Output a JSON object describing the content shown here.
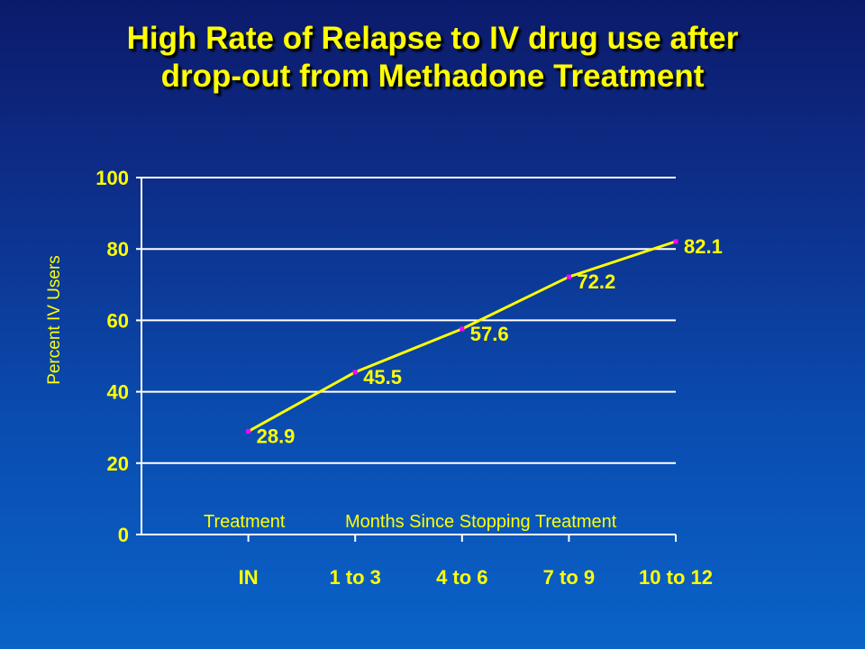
{
  "title": {
    "line1": "High Rate of Relapse to IV drug use after",
    "line2": "drop-out from Methadone Treatment"
  },
  "annotations": {
    "treatment": "Treatment",
    "months": "Months Since Stopping Treatment"
  },
  "colors": {
    "text": "#ffff00",
    "line": "#ffff00",
    "marker": "#ff00ff",
    "grid": "#ffffff",
    "background_top": "#0c1a6b",
    "background_bottom": "#0a63c8"
  },
  "chart_data": {
    "type": "line",
    "categories": [
      "IN",
      "1 to 3",
      "4 to 6",
      "7 to 9",
      "10 to 12"
    ],
    "series": [
      {
        "values": [
          28.9,
          45.5,
          57.6,
          72.2,
          82.1
        ]
      }
    ],
    "data_labels": [
      "28.9",
      "45.5",
      "57.6",
      "72.2",
      "82.1"
    ],
    "ylabel": "Percent IV Users",
    "xlabel": "",
    "ylim": [
      0,
      100
    ],
    "yticks": [
      0,
      20,
      40,
      60,
      80,
      100
    ],
    "grid": true
  }
}
